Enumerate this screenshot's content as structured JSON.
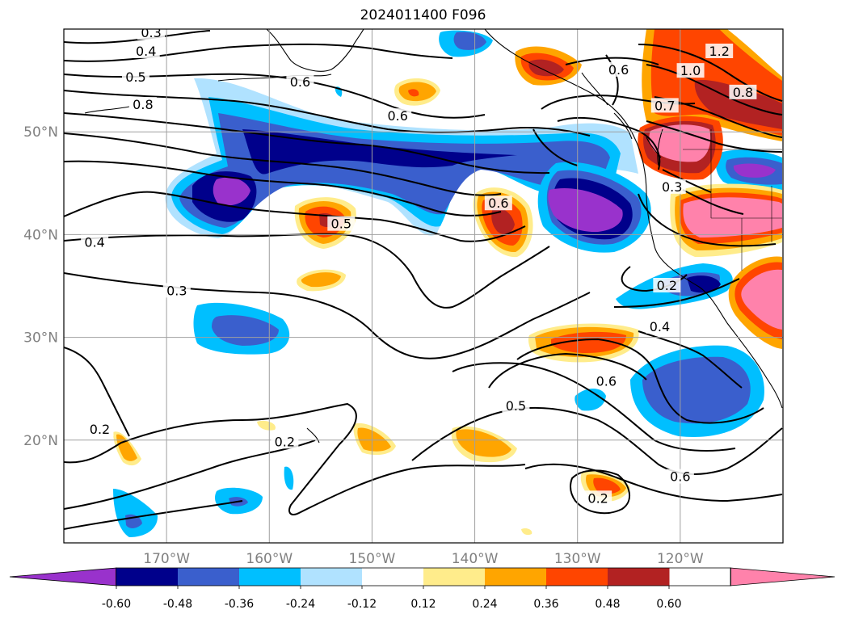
{
  "title": "2024011400 F096",
  "map": {
    "lat_range": [
      10,
      60
    ],
    "lon_range": [
      -180,
      -110
    ],
    "lat_ticks": [
      {
        "value": 50,
        "label": "50°N"
      },
      {
        "value": 40,
        "label": "40°N"
      },
      {
        "value": 30,
        "label": "30°N"
      },
      {
        "value": 20,
        "label": "20°N"
      }
    ],
    "lon_ticks": [
      {
        "value": -170,
        "label": "170°W"
      },
      {
        "value": -160,
        "label": "160°W"
      },
      {
        "value": -150,
        "label": "150°W"
      },
      {
        "value": -140,
        "label": "140°W"
      },
      {
        "value": -130,
        "label": "130°W"
      },
      {
        "value": -120,
        "label": "120°W"
      }
    ],
    "grid": true
  },
  "colorbar": {
    "levels": [
      "-0.60",
      "-0.48",
      "-0.36",
      "-0.24",
      "-0.12",
      "0.12",
      "0.24",
      "0.36",
      "0.48",
      "0.60"
    ],
    "colors": [
      "#9932CC",
      "#00008B",
      "#3A5FCD",
      "#00BFFF",
      "#B0E2FF",
      "#FFFFFF",
      "#FFEC8B",
      "#FFA500",
      "#FF4500",
      "#B22222",
      "#FF82AB"
    ],
    "extend": "both"
  },
  "contour_labels": [
    {
      "text": "0.3",
      "lon": -171.5,
      "lat": 59.6
    },
    {
      "text": "0.4",
      "lon": -172.0,
      "lat": 57.8
    },
    {
      "text": "0.5",
      "lon": -173.0,
      "lat": 55.3
    },
    {
      "text": "0.6",
      "lon": -157.0,
      "lat": 54.8
    },
    {
      "text": "0.8",
      "lon": -172.3,
      "lat": 52.6
    },
    {
      "text": "0.6",
      "lon": -147.5,
      "lat": 51.5
    },
    {
      "text": "0.5",
      "lon": -153.0,
      "lat": 41.0
    },
    {
      "text": "0.6",
      "lon": -137.7,
      "lat": 43.0
    },
    {
      "text": "0.4",
      "lon": -177.0,
      "lat": 39.2
    },
    {
      "text": "0.3",
      "lon": -169.0,
      "lat": 34.5
    },
    {
      "text": "0.3",
      "lon": -120.8,
      "lat": 44.6
    },
    {
      "text": "0.2",
      "lon": -121.3,
      "lat": 35.0
    },
    {
      "text": "0.4",
      "lon": -122.0,
      "lat": 31.0
    },
    {
      "text": "0.6",
      "lon": -127.2,
      "lat": 25.7
    },
    {
      "text": "0.5",
      "lon": -136.0,
      "lat": 23.3
    },
    {
      "text": "0.6",
      "lon": -120.0,
      "lat": 16.4
    },
    {
      "text": "0.2",
      "lon": -158.5,
      "lat": 19.8
    },
    {
      "text": "0.2",
      "lon": -176.5,
      "lat": 21.0
    },
    {
      "text": "0.2",
      "lon": -128.0,
      "lat": 14.3
    },
    {
      "text": "1.2",
      "lon": -116.2,
      "lat": 57.8
    },
    {
      "text": "1.0",
      "lon": -119.0,
      "lat": 55.9
    },
    {
      "text": "0.8",
      "lon": -113.9,
      "lat": 53.8
    },
    {
      "text": "0.7",
      "lon": -121.5,
      "lat": 52.5
    },
    {
      "text": "0.6",
      "lon": -126.0,
      "lat": 56.0
    }
  ]
}
